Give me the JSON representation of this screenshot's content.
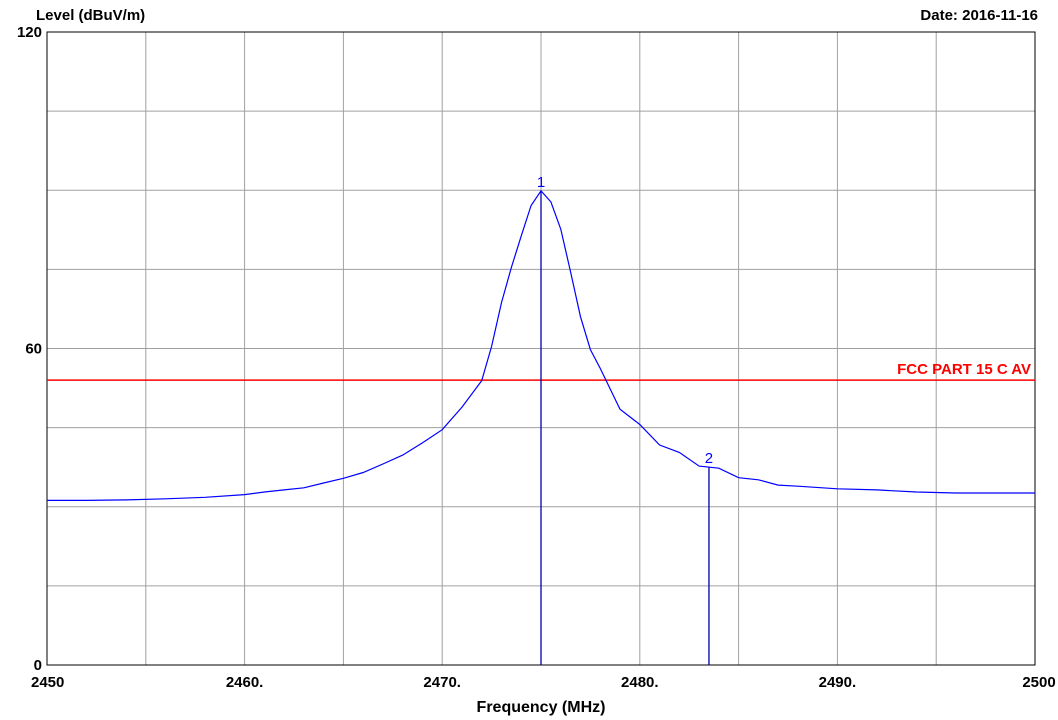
{
  "header": {
    "ylabel": "Level (dBuV/m)",
    "date": "Date: 2016-11-16"
  },
  "chart_data": {
    "type": "line",
    "xlabel": "Frequency (MHz)",
    "ylabel": "Level (dBuV/m)",
    "xlim": [
      2450,
      2500
    ],
    "ylim": [
      0,
      120
    ],
    "grid": true,
    "x_ticks": [
      {
        "value": 2450,
        "label": "2450"
      },
      {
        "value": 2460,
        "label": "2460."
      },
      {
        "value": 2470,
        "label": "2470."
      },
      {
        "value": 2480,
        "label": "2480."
      },
      {
        "value": 2490,
        "label": "2490."
      },
      {
        "value": 2500,
        "label": "2500"
      }
    ],
    "y_ticks": [
      {
        "value": 0,
        "label": "0"
      },
      {
        "value": 60,
        "label": "60"
      },
      {
        "value": 120,
        "label": "120"
      }
    ],
    "limit_line": {
      "name": "FCC PART 15 C AV",
      "value": 54,
      "color": "#ff0000"
    },
    "series": [
      {
        "color": "#0000ff",
        "x": [
          2450,
          2452,
          2454,
          2456,
          2458,
          2460,
          2461,
          2462,
          2463,
          2464,
          2465,
          2466,
          2467,
          2468,
          2469,
          2470,
          2471,
          2472,
          2472.5,
          2473,
          2473.5,
          2474,
          2474.5,
          2475,
          2475.5,
          2476,
          2476.5,
          2477,
          2477.5,
          2478,
          2479,
          2480,
          2481,
          2482,
          2483,
          2484,
          2485,
          2486,
          2487,
          2488,
          2490,
          2492,
          2494,
          2496,
          2498,
          2500
        ],
        "y": [
          31.2,
          31.2,
          31.3,
          31.5,
          31.8,
          32.3,
          32.8,
          33.2,
          33.6,
          34.5,
          35.4,
          36.5,
          38.1,
          39.8,
          42.1,
          44.6,
          48.9,
          53.9,
          60.4,
          68.7,
          75.4,
          81.3,
          87.1,
          89.9,
          87.8,
          82.6,
          74.5,
          66.0,
          59.8,
          56.2,
          48.5,
          45.6,
          41.7,
          40.3,
          37.7,
          37.3,
          35.5,
          35.1,
          34.1,
          33.9,
          33.4,
          33.2,
          32.8,
          32.6,
          32.6,
          32.6
        ]
      }
    ],
    "markers": [
      {
        "label": "1",
        "x": 2475,
        "y": 89.9
      },
      {
        "label": "2",
        "x": 2483.5,
        "y": 37.5
      }
    ]
  }
}
